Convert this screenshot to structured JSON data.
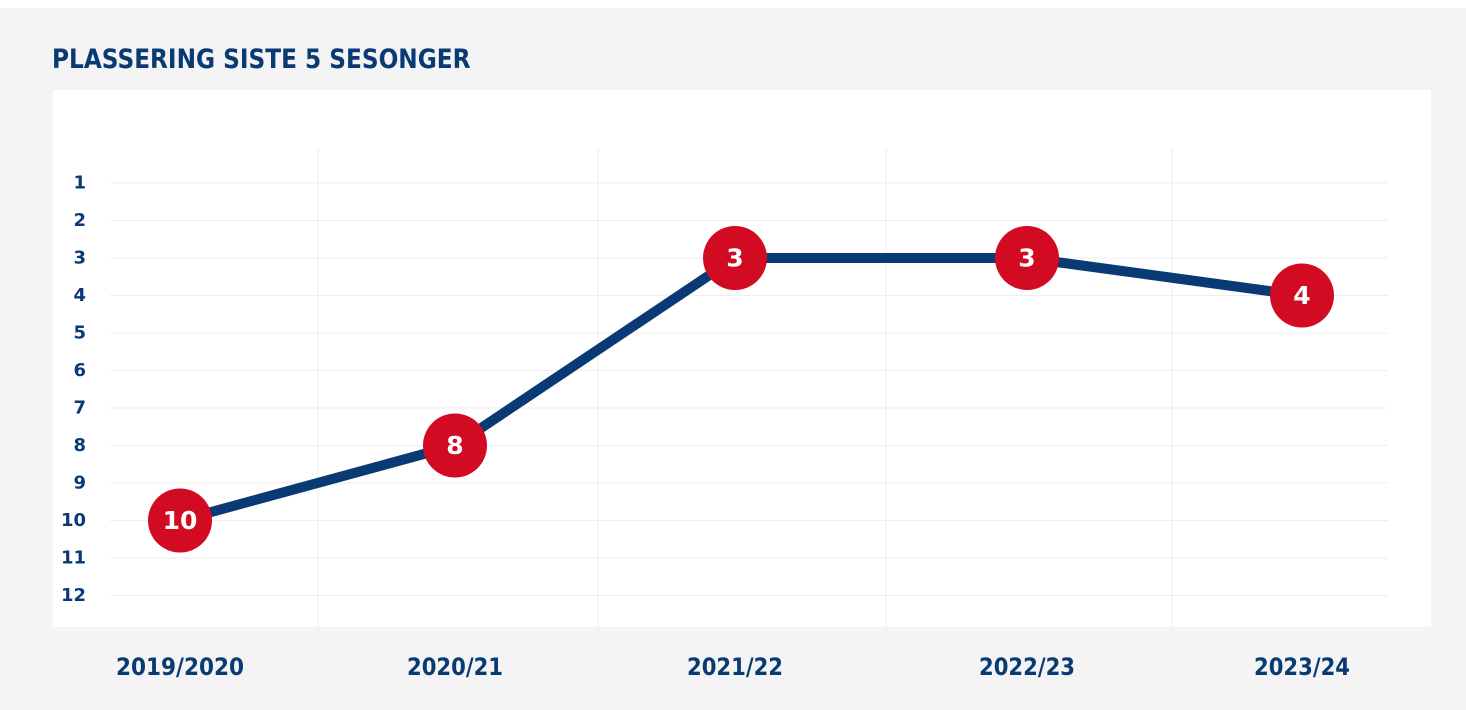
{
  "colors": {
    "line": "#0a3a74",
    "marker": "#d20a22",
    "marker_text": "#ffffff",
    "text": "#0a3a74",
    "grid": "#eeeeee",
    "background": "#f4f4f4",
    "panel": "#ffffff"
  },
  "chart_data": {
    "type": "line",
    "title": "PLASSERING SISTE 5 SESONGER",
    "xlabel": "",
    "ylabel": "",
    "categories": [
      "2019/2020",
      "2020/21",
      "2021/22",
      "2022/23",
      "2023/24"
    ],
    "series": [
      {
        "values": [
          10,
          8,
          3,
          3,
          4
        ]
      }
    ],
    "yticks": [
      "1",
      "2",
      "3",
      "4",
      "5",
      "6",
      "7",
      "8",
      "9",
      "10",
      "11",
      "12"
    ],
    "ylim": [
      1,
      12
    ],
    "y_inverted": true,
    "grid": true,
    "data_labels": [
      "10",
      "8",
      "3",
      "3",
      "4"
    ]
  }
}
